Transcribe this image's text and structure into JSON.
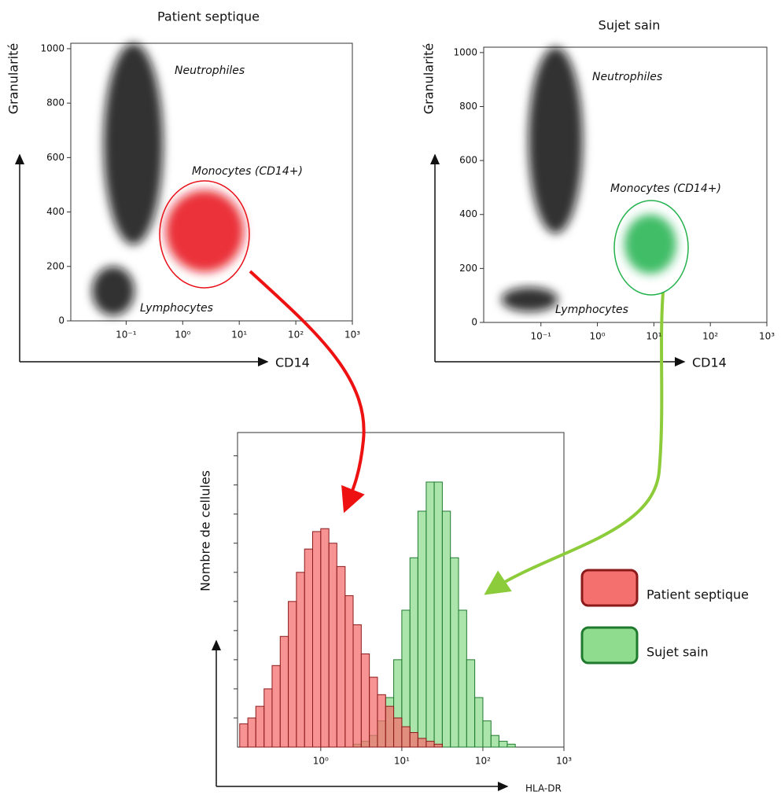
{
  "chart_data": [
    {
      "type": "scatter",
      "title": "Patient septique",
      "xlabel": "CD14",
      "ylabel": "Granularité",
      "log_x": true,
      "xlim": [
        0.0105,
        1000
      ],
      "ylim": [
        0,
        1020
      ],
      "xticks": [
        {
          "value": 0.1,
          "label": "10⁻¹"
        },
        {
          "value": 1,
          "label": "10⁰"
        },
        {
          "value": 10,
          "label": "10¹"
        },
        {
          "value": 100,
          "label": "10²"
        },
        {
          "value": 1000,
          "label": "10³"
        }
      ],
      "yticks": [
        0,
        200,
        400,
        600,
        800,
        1000
      ],
      "populations": [
        {
          "name": "Neutrophiles",
          "color": "#111111",
          "x_range": [
            0.04,
            0.45
          ],
          "y_range": [
            280,
            1020
          ]
        },
        {
          "name": "Monocytes (CD14+)",
          "color": "#e8101a",
          "x_range": [
            0.5,
            12
          ],
          "y_range": [
            180,
            480
          ]
        },
        {
          "name": "Lymphocytes",
          "color": "#111111",
          "x_range": [
            0.025,
            0.14
          ],
          "y_range": [
            20,
            200
          ]
        }
      ]
    },
    {
      "type": "scatter",
      "title": "Sujet sain",
      "xlabel": "CD14",
      "ylabel": "Granularité",
      "log_x": true,
      "xlim": [
        0.0097,
        1000
      ],
      "ylim": [
        0,
        1020
      ],
      "xticks": [
        {
          "value": 0.1,
          "label": "10⁻¹"
        },
        {
          "value": 1,
          "label": "10⁰"
        },
        {
          "value": 10,
          "label": "10¹"
        },
        {
          "value": 100,
          "label": "10²"
        },
        {
          "value": 1000,
          "label": "10³"
        }
      ],
      "yticks": [
        0,
        200,
        400,
        600,
        800,
        1000
      ],
      "populations": [
        {
          "name": "Neutrophiles",
          "color": "#111111",
          "x_range": [
            0.06,
            0.55
          ],
          "y_range": [
            330,
            1020
          ]
        },
        {
          "name": "Monocytes (CD14+)",
          "color": "#22b14c",
          "x_range": [
            3,
            25
          ],
          "y_range": [
            180,
            400
          ]
        },
        {
          "name": "Lymphocytes",
          "color": "#111111",
          "x_range": [
            0.02,
            0.2
          ],
          "y_range": [
            40,
            130
          ]
        }
      ]
    },
    {
      "type": "histogram",
      "xlabel": "HLA-DR",
      "ylabel": "Nombre de cellules",
      "log_x": true,
      "xlim": [
        0.094,
        1000
      ],
      "ylim": [
        0,
        108
      ],
      "xticks": [
        {
          "value": 1,
          "label": "10⁰"
        },
        {
          "value": 10,
          "label": "10¹"
        },
        {
          "value": 100,
          "label": "10²"
        },
        {
          "value": 1000,
          "label": "10³"
        }
      ],
      "yticks": [
        10,
        20,
        30,
        40,
        50,
        60,
        70,
        80,
        90,
        100
      ],
      "bins": [
        0.1,
        0.126,
        0.158,
        0.2,
        0.251,
        0.316,
        0.398,
        0.501,
        0.631,
        0.794,
        1,
        1.26,
        1.58,
        2,
        2.51,
        3.16,
        3.98,
        5.01,
        6.31,
        7.94,
        10,
        12.6,
        15.8,
        20,
        25.1,
        31.6,
        39.8,
        50.1,
        63.1,
        79.4,
        100,
        126,
        158,
        200,
        251,
        316
      ],
      "series": [
        {
          "name": "Sujet sain",
          "color": "#8fdc8f",
          "edge_color": "#1f7a2e",
          "values": [
            0,
            0,
            0,
            0,
            0,
            0,
            0,
            0,
            0,
            0,
            0,
            0,
            0,
            0,
            1,
            2,
            4,
            9,
            17,
            30,
            47,
            65,
            81,
            91,
            91,
            81,
            65,
            47,
            30,
            17,
            9,
            4,
            2,
            1,
            0
          ]
        },
        {
          "name": "Patient septique",
          "color": "#f4706f",
          "edge_color": "#8b1a1a",
          "values": [
            8,
            10,
            14,
            20,
            28,
            38,
            50,
            60,
            68,
            74,
            75,
            70,
            62,
            52,
            42,
            32,
            24,
            18,
            14,
            10,
            7,
            5,
            3,
            2,
            1,
            0,
            0,
            0,
            0,
            0,
            0,
            0,
            0,
            0,
            0
          ]
        }
      ]
    }
  ]
}
